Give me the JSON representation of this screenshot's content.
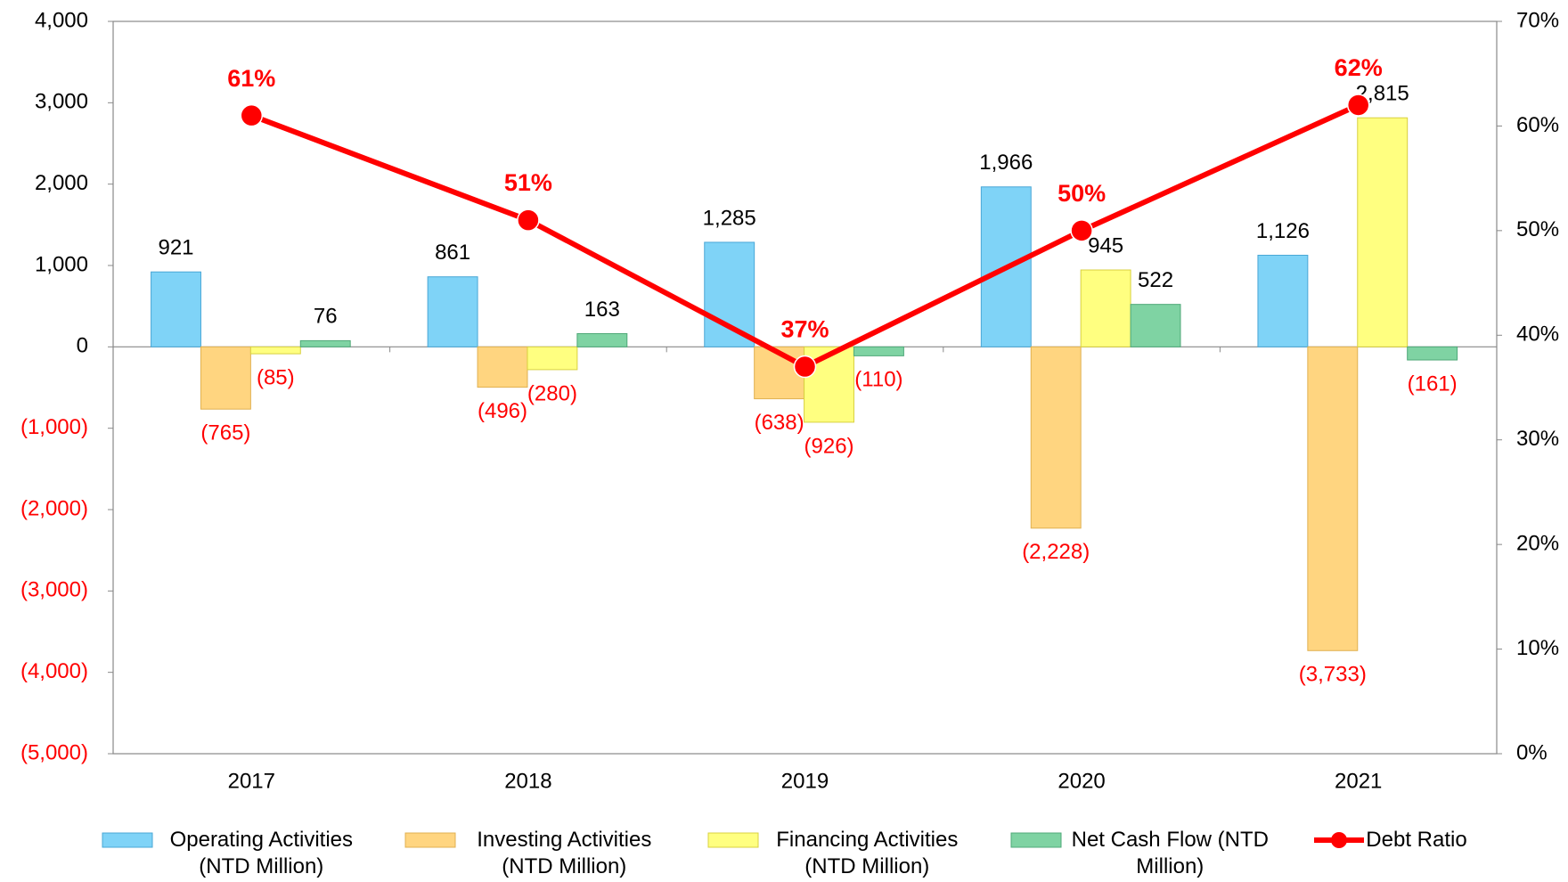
{
  "chart_data": {
    "type": "bar",
    "categories": [
      "2017",
      "2018",
      "2019",
      "2020",
      "2021"
    ],
    "series": [
      {
        "name": "Operating Activities (NTD Million)",
        "color": "#7fd3f7",
        "values": [
          921,
          861,
          1285,
          1966,
          1126
        ],
        "value_labels": [
          "921",
          "861",
          "1,285",
          "1,966",
          "1,126"
        ]
      },
      {
        "name": "Investing Activities (NTD Million)",
        "color": "#ffd580",
        "values": [
          -765,
          -496,
          -638,
          -2228,
          -3733
        ],
        "value_labels": [
          "(765)",
          "(496)",
          "(638)",
          "(2,228)",
          "(3,733)"
        ]
      },
      {
        "name": "Financing Activities (NTD Million)",
        "color": "#ffff80",
        "values": [
          -85,
          -280,
          -926,
          945,
          2815
        ],
        "value_labels": [
          "(85)",
          "(280)",
          "(926)",
          "945",
          "2,815"
        ]
      },
      {
        "name": "Net Cash Flow (NTD Million)",
        "color": "#7fd3a3",
        "values": [
          76,
          163,
          -110,
          522,
          -161
        ],
        "value_labels": [
          "76",
          "163",
          "(110)",
          "522",
          "(161)"
        ]
      },
      {
        "name": "Debt Ratio",
        "type": "line",
        "axis": "y2",
        "color": "#ff0000",
        "values": [
          61,
          51,
          37,
          50,
          62
        ],
        "value_labels": [
          "61%",
          "51%",
          "37%",
          "50%",
          "62%"
        ]
      }
    ],
    "ylim": [
      -5000,
      4000
    ],
    "yticks": [
      {
        "value": 4000,
        "label": "4,000"
      },
      {
        "value": 3000,
        "label": "3,000"
      },
      {
        "value": 2000,
        "label": "2,000"
      },
      {
        "value": 1000,
        "label": "1,000"
      },
      0,
      {
        "value": -1000,
        "label": "(1,000)"
      },
      {
        "value": -2000,
        "label": "(2,000)"
      },
      {
        "value": -3000,
        "label": "(3,000)"
      },
      {
        "value": -4000,
        "label": "(4,000)"
      },
      {
        "value": -5000,
        "label": "(5,000)"
      }
    ],
    "y2lim": [
      0,
      70
    ],
    "y2ticks": [
      {
        "value": 0,
        "label": "0%"
      },
      {
        "value": 10,
        "label": "10%"
      },
      {
        "value": 20,
        "label": "20%"
      },
      {
        "value": 30,
        "label": "30%"
      },
      {
        "value": 40,
        "label": "40%"
      },
      {
        "value": 50,
        "label": "50%"
      },
      {
        "value": 60,
        "label": "60%"
      },
      {
        "value": 70,
        "label": "70%"
      }
    ],
    "negative_color": "#ff0000",
    "legend": "bottom"
  }
}
